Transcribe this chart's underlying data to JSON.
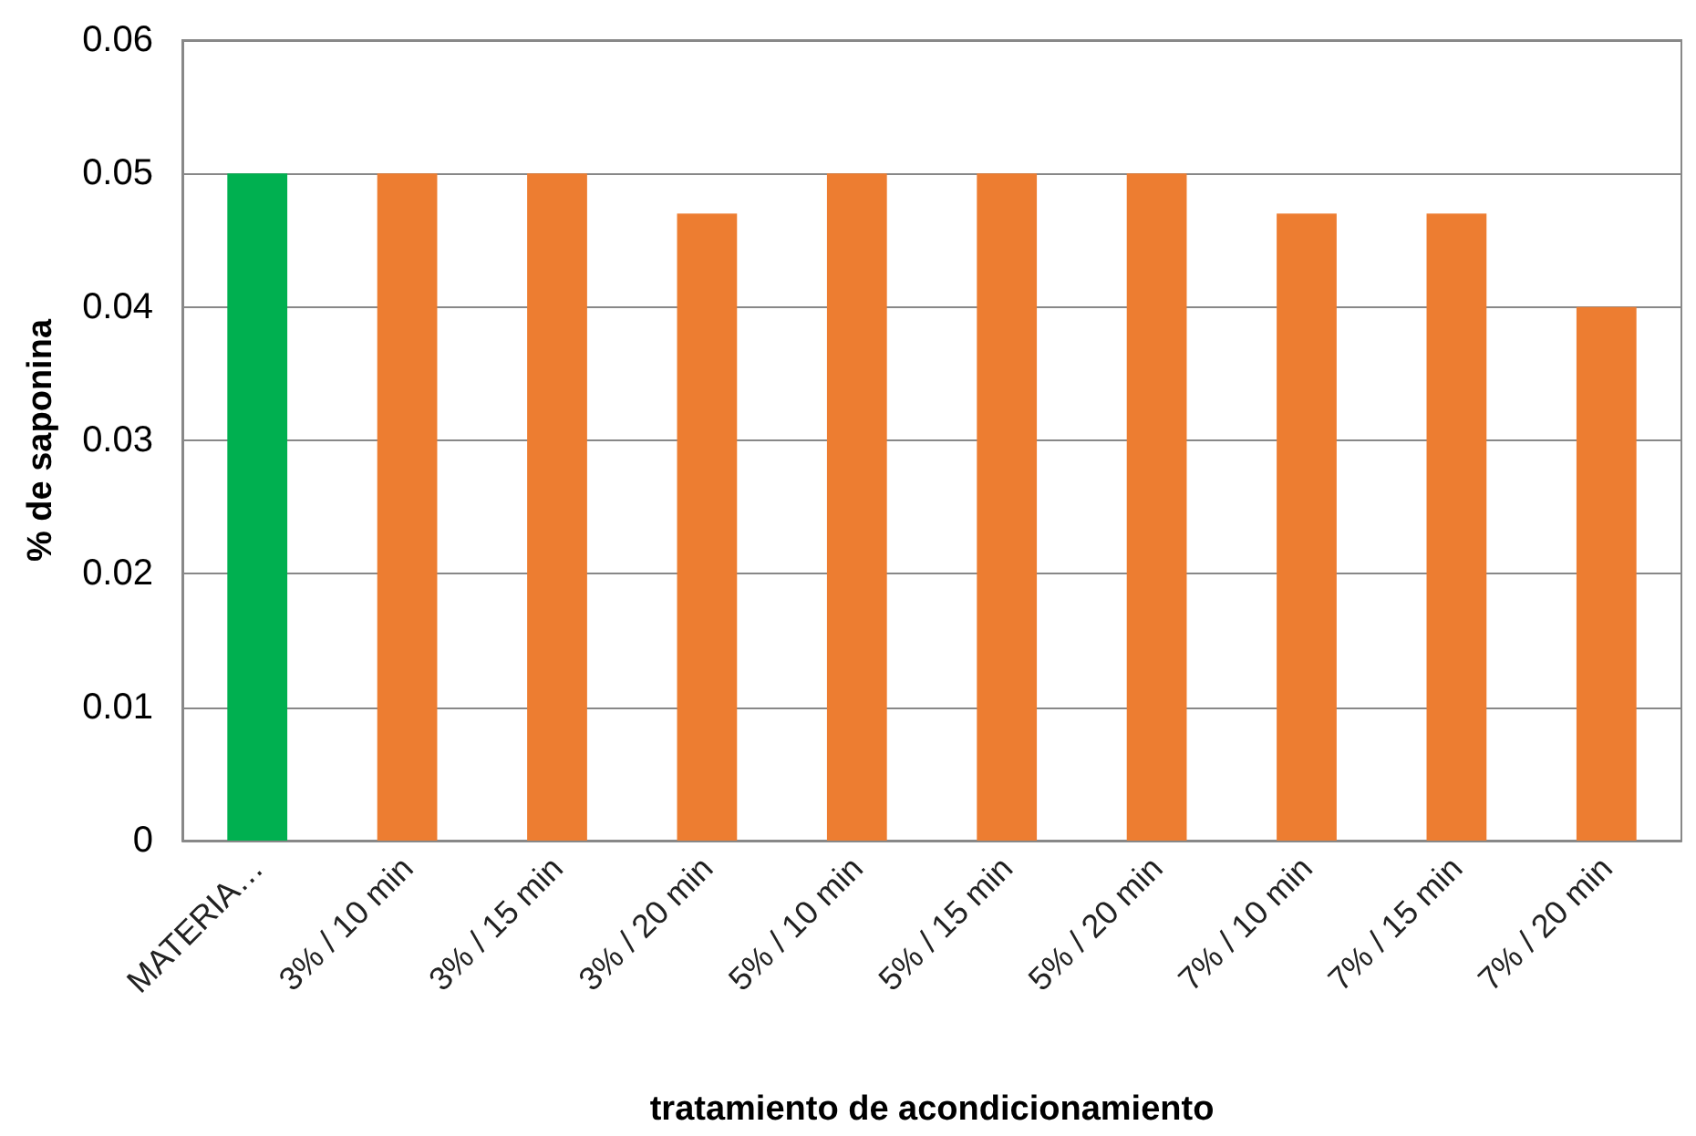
{
  "chart_data": {
    "type": "bar",
    "xlabel": "tratamiento de acondicionamiento",
    "ylabel": "% de saponina",
    "categories": [
      "MATERIA…",
      "3% / 10 min",
      "3% / 15 min",
      "3% / 20 min",
      "5% / 10 min",
      "5% / 15 min",
      "5% / 20 min",
      "7% / 10 min",
      "7% / 15 min",
      "7% / 20 min"
    ],
    "values": [
      0.05,
      0.05,
      0.05,
      0.047,
      0.05,
      0.05,
      0.05,
      0.047,
      0.047,
      0.04
    ],
    "colors": [
      "#00b050",
      "#ed7d31",
      "#ed7d31",
      "#ed7d31",
      "#ed7d31",
      "#ed7d31",
      "#ed7d31",
      "#ed7d31",
      "#ed7d31",
      "#ed7d31"
    ],
    "ylim": [
      0,
      0.06
    ],
    "yticks": [
      0,
      0.01,
      0.02,
      0.03,
      0.04,
      0.05,
      0.06
    ],
    "grid": "y"
  }
}
